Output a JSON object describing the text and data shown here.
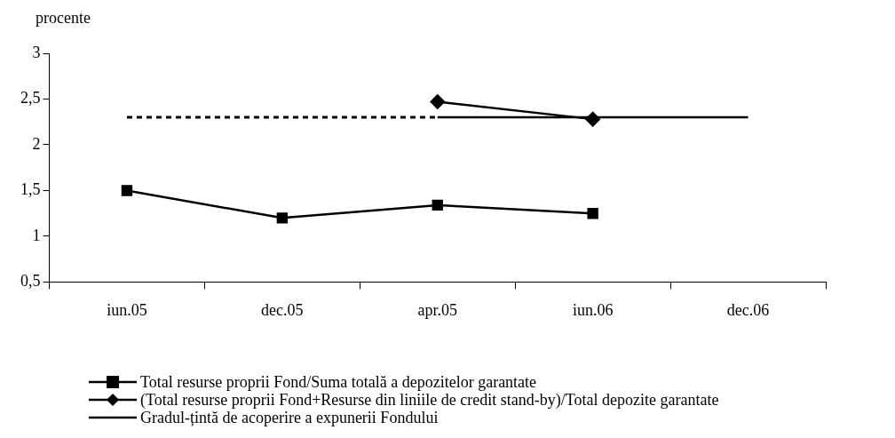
{
  "chart_data": {
    "type": "line",
    "ylabel": "procente",
    "categories": [
      "iun.05",
      "dec.05",
      "apr.05",
      "iun.06",
      "dec.06"
    ],
    "series": [
      {
        "name": "Total resurse proprii Fond/Suma totală a depozitelor garantate",
        "color": "#000000",
        "marker": "square",
        "values": [
          1.5,
          1.2,
          1.34,
          1.25,
          null
        ]
      },
      {
        "name": "(Total resurse proprii Fond+Resurse din liniile de credit stand-by)/Total depozite garantate",
        "color": "#000000",
        "marker": "diamond",
        "values": [
          null,
          null,
          2.47,
          2.28,
          null
        ]
      },
      {
        "name": "Gradul-țintă de acoperire a expunerii Fondului",
        "color": "#000000",
        "marker": "none",
        "values": [
          null,
          null,
          2.3,
          2.3,
          2.3
        ]
      },
      {
        "color": "#000000",
        "marker": "none",
        "line_style": "dashed",
        "values": [
          2.3,
          2.3,
          2.3,
          null,
          null
        ]
      }
    ],
    "ylim": [
      0.5,
      3
    ],
    "yticks": [
      {
        "value": 0.5,
        "label": "0,5"
      },
      1,
      {
        "value": 1.5,
        "label": "1,5"
      },
      2,
      {
        "value": 2.5,
        "label": "2,5"
      },
      3
    ],
    "grid": false,
    "legend": "bottom"
  }
}
